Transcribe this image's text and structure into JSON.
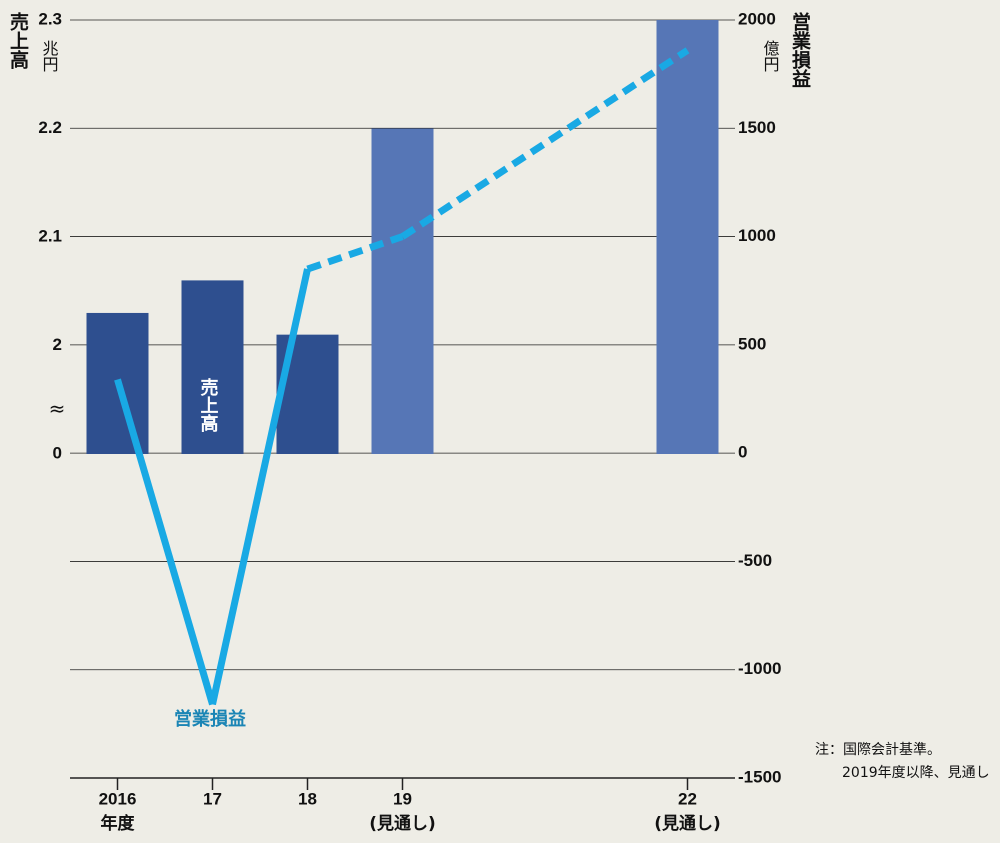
{
  "chart_data": {
    "type": "bar_line",
    "left_axis_label": "売上高",
    "left_axis_unit": "兆円",
    "right_axis_label": "営業損益",
    "right_axis_unit": "億円",
    "xlim": [
      2015.5,
      2022.5
    ],
    "xticks": [
      {
        "value": 2016,
        "label": "2016"
      },
      {
        "value": 2017,
        "label": "17"
      },
      {
        "value": 2018,
        "label": "18"
      },
      {
        "value": 2019,
        "label": "19"
      },
      {
        "value": 2022,
        "label": "22"
      }
    ],
    "xtick_notes": [
      "年度",
      null,
      null,
      "(見通し)",
      "(見通し)"
    ],
    "ylim": [
      1.9,
      2.3
    ],
    "yticks": [
      2.0,
      2.1,
      2.2,
      2.3
    ],
    "axis_break_label": "0",
    "axis_break_symbol": "≈",
    "y2lim": [
      -1500,
      2000
    ],
    "y2ticks": [
      -1500,
      -1000,
      -500,
      0,
      500,
      1000,
      1500,
      2000
    ],
    "grid": true,
    "x": [
      2016,
      2017,
      2018,
      2019,
      2022
    ],
    "series": [
      {
        "name": "売上高",
        "type": "bar",
        "colors": [
          "#2e4f8f",
          "#2e4f8f",
          "#2e4f8f",
          "#5676b6",
          "#5676b6"
        ],
        "values": [
          2.03,
          2.06,
          2.01,
          2.2,
          2.3
        ]
      },
      {
        "name": "営業損益",
        "type": "line",
        "axis": "y2",
        "color": "#19a9e4",
        "dash_from": 2,
        "values": [
          340,
          -1160,
          850,
          1000,
          1860
        ]
      }
    ],
    "notes": [
      "注：国際会計基準。",
      "2019年度以降、見通し"
    ]
  }
}
